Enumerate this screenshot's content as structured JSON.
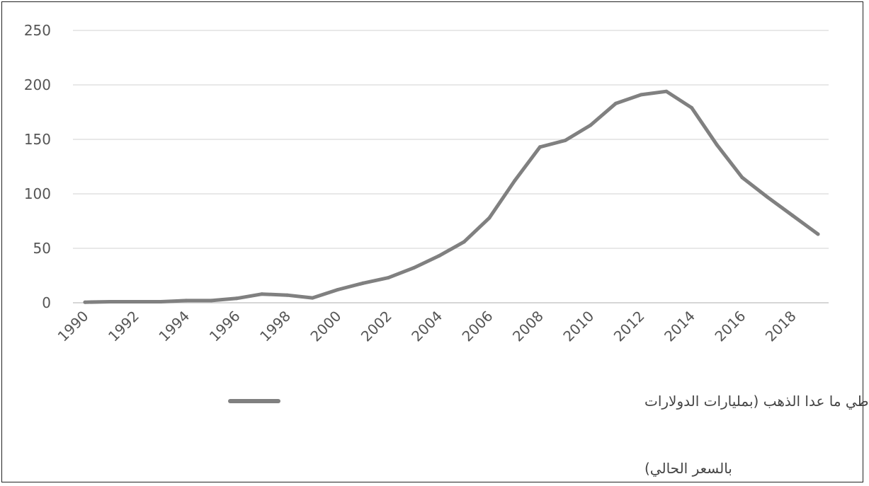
{
  "chart_data": {
    "type": "line",
    "title": "",
    "xlabel": "",
    "ylabel": "",
    "ylim": [
      0,
      250
    ],
    "yticks": [
      "0",
      "50",
      "100",
      "150",
      "200",
      "250"
    ],
    "xticks": [
      "1990",
      "1992",
      "1994",
      "1996",
      "1998",
      "2000",
      "2002",
      "2004",
      "2006",
      "2008",
      "2010",
      "2012",
      "2014",
      "2016",
      "2018"
    ],
    "grid": true,
    "legend_position": "bottom",
    "x": [
      1990,
      1991,
      1992,
      1993,
      1994,
      1995,
      1996,
      1997,
      1998,
      1999,
      2000,
      2001,
      2002,
      2003,
      2004,
      2005,
      2006,
      2007,
      2008,
      2009,
      2010,
      2011,
      2012,
      2013,
      2014,
      2015,
      2016,
      2017,
      2018,
      2019
    ],
    "series": [
      {
        "name": "مجموع الاحتياطي ما عدا الذهب (بمليارات الدولارات بالسعر الحالي)",
        "legend_line1": "مجموع الاحتياطي ما عدا الذهب (بمليارات الدولارات",
        "legend_line2": "بالسعر الحالي)",
        "color": "#808080",
        "values": [
          0.5,
          1,
          1,
          1,
          2,
          2,
          4,
          8,
          7,
          4.5,
          12,
          18,
          23,
          32,
          43,
          56,
          78,
          112,
          143,
          149,
          163,
          183,
          191,
          194,
          179,
          145,
          115,
          97,
          80,
          63
        ]
      }
    ]
  }
}
